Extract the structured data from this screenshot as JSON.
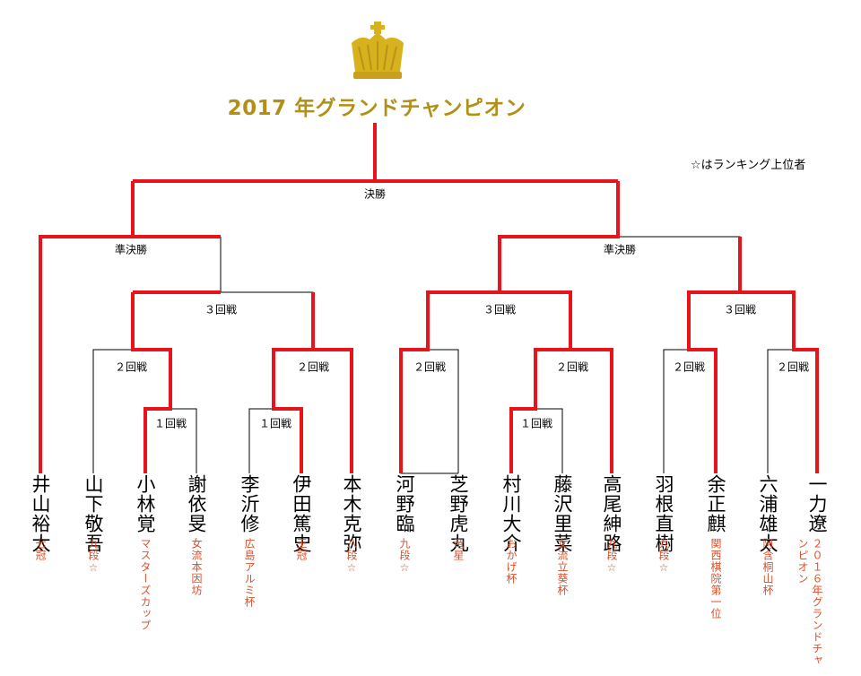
{
  "title": "2017 年グランドチャンピオン",
  "note": "☆はランキング上位者",
  "rounds": {
    "final": "決勝",
    "semi_left": "準決勝",
    "semi_right": "準決勝",
    "r3_a": "３回戦",
    "r3_b": "３回戦",
    "r3_c": "３回戦",
    "r2_a": "２回戦",
    "r2_b": "２回戦",
    "r2_c": "２回戦",
    "r2_d": "２回戦",
    "r2_e": "２回戦",
    "r2_f": "２回戦",
    "r1_a": "１回戦",
    "r1_b": "１回戦",
    "r1_c": "１回戦"
  },
  "players": [
    {
      "name": "井山裕太",
      "title": "七冠"
    },
    {
      "name": "山下敬吾",
      "title": "九段☆"
    },
    {
      "name": "小林覚",
      "title": "マスターズカップ"
    },
    {
      "name": "謝依旻",
      "title": "女流本因坊"
    },
    {
      "name": "李沂修",
      "title": "広島アルミ杯"
    },
    {
      "name": "伊田篤史",
      "title": "王冠"
    },
    {
      "name": "本木克弥",
      "title": "八段☆"
    },
    {
      "name": "河野臨",
      "title": "九段☆"
    },
    {
      "name": "芝野虎丸",
      "title": "竜星"
    },
    {
      "name": "村川大介",
      "title": "おかげ杯"
    },
    {
      "name": "藤沢里菜",
      "title": "女流立葵杯"
    },
    {
      "name": "高尾紳路",
      "title": "九段☆"
    },
    {
      "name": "羽根直樹",
      "title": "九段☆"
    },
    {
      "name": "余正麒",
      "title": "関西棋院第一位"
    },
    {
      "name": "六浦雄太",
      "title": "阿含桐山杯"
    },
    {
      "name": "一力遼",
      "title": "２０１６年グランドチャンピオン"
    }
  ],
  "colors": {
    "winner_line": "#e8141b",
    "loser_line": "#000000",
    "title_gold": "#b29015",
    "crown_gold": "#d8b21c",
    "sub_title": "#d9502b"
  }
}
